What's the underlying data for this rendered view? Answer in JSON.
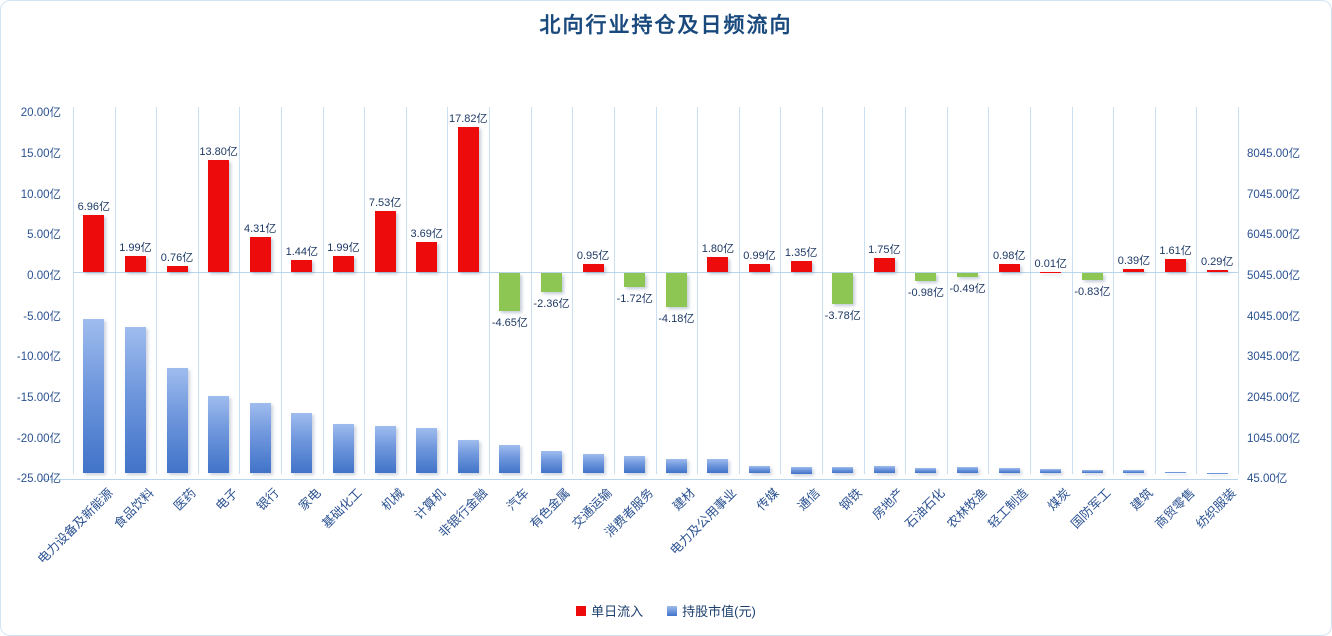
{
  "title": "北向行业持仓及日频流向",
  "legend": [
    {
      "label": "单日流入",
      "color": "#ee0b0b"
    },
    {
      "label": "持股市值(元)",
      "color_gradient": [
        "#9fbcee",
        "#4173c8"
      ]
    }
  ],
  "colors": {
    "inflow_positive": "#ee0b0b",
    "inflow_negative": "#8dc652",
    "holding_top": "#9fbcee",
    "holding_bottom": "#4173c8",
    "text": "#2a5191",
    "title_text": "#1a4a7d",
    "gridline": "#cadff1"
  },
  "chart_data": {
    "type": "bar",
    "title": "北向行业持仓及日频流向",
    "grid": "vertical-only",
    "legend_position": "bottom-center",
    "categories": [
      "电力设备及新能源",
      "食品饮料",
      "医药",
      "电子",
      "银行",
      "家电",
      "基础化工",
      "机械",
      "计算机",
      "非银行金融",
      "汽车",
      "有色金属",
      "交通运输",
      "消费者服务",
      "建材",
      "电力及公用事业",
      "传媒",
      "通信",
      "钢铁",
      "房地产",
      "石油石化",
      "农林牧渔",
      "轻工制造",
      "煤炭",
      "国防军工",
      "建筑",
      "商贸零售",
      "纺织服装"
    ],
    "series": [
      {
        "name": "单日流入",
        "axis": "left",
        "unit": "亿",
        "label_suffix": "亿",
        "values": [
          6.96,
          1.99,
          0.76,
          13.8,
          4.31,
          1.44,
          1.99,
          7.53,
          3.69,
          17.82,
          -4.65,
          -2.36,
          0.95,
          -1.72,
          -4.18,
          1.8,
          0.99,
          1.35,
          -3.78,
          1.75,
          -0.98,
          -0.49,
          0.98,
          0.01,
          -0.83,
          0.39,
          1.61,
          0.29
        ]
      },
      {
        "name": "持股市值(元)",
        "axis": "right",
        "unit": "亿",
        "values_estimated": true,
        "values": [
          3850,
          3650,
          2640,
          1950,
          1780,
          1530,
          1260,
          1210,
          1160,
          870,
          745,
          600,
          525,
          475,
          400,
          395,
          230,
          205,
          215,
          230,
          180,
          215,
          180,
          155,
          130,
          130,
          90,
          55
        ]
      }
    ],
    "left_axis": {
      "min": -25,
      "max": 20,
      "step": 5,
      "ticks": [
        "20.00亿",
        "15.00亿",
        "10.00亿",
        "5.00亿",
        "0.00亿",
        "-5.00亿",
        "-10.00亿",
        "-15.00亿",
        "-20.00亿",
        "-25.00亿"
      ]
    },
    "right_axis": {
      "min": 45,
      "max": 9045,
      "step": 1000,
      "ticks": [
        "8045.00亿",
        "7045.00亿",
        "6045.00亿",
        "5045.00亿",
        "4045.00亿",
        "3045.00亿",
        "2045.00亿",
        "1045.00亿",
        "45.00亿"
      ]
    }
  }
}
